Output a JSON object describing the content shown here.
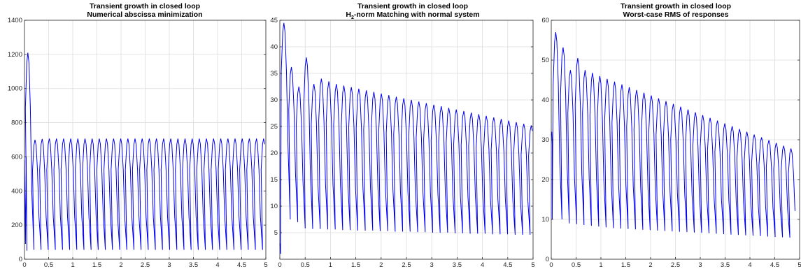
{
  "chart_data": [
    {
      "type": "line",
      "title": "Transient growth in closed loop",
      "subtitle": "Numerical abscissa minimization",
      "xlabel": "",
      "ylabel": "",
      "xlim": [
        0,
        5
      ],
      "ylim": [
        0,
        1400
      ],
      "xticks": [
        0,
        0.5,
        1,
        1.5,
        2,
        2.5,
        3,
        3.5,
        4,
        4.5,
        5
      ],
      "yticks": [
        0,
        200,
        400,
        600,
        800,
        1000,
        1200,
        1400
      ],
      "grid": true,
      "series": [
        {
          "color": "#0000ee",
          "period": 0.148,
          "start_x": 0.05,
          "first_peak_x": 0.07,
          "first_peak_y": 1210,
          "peaks": [
            1210,
            700,
            705,
            707,
            707,
            707,
            707,
            707,
            707,
            707,
            707,
            707,
            707,
            707,
            707,
            707,
            707,
            707,
            707,
            707,
            707,
            707,
            707,
            707,
            707,
            707,
            707,
            707,
            707,
            707,
            707,
            707,
            707,
            707
          ],
          "troughs": [
            50,
            55,
            55,
            55,
            55,
            55,
            55,
            55,
            55,
            55,
            55,
            55,
            55,
            55,
            55,
            55,
            55,
            55,
            55,
            55,
            55,
            55,
            55,
            55,
            55,
            55,
            55,
            55,
            55,
            55,
            55,
            55,
            55,
            55
          ],
          "initial_points": [
            [
              0,
              580
            ],
            [
              0.02,
              90
            ],
            [
              0.035,
              600
            ]
          ]
        }
      ]
    },
    {
      "type": "line",
      "title": "Transient growth in closed loop",
      "subtitle_parts": [
        "H",
        "2",
        "-norm Matching with normal system"
      ],
      "xlabel": "",
      "ylabel": "",
      "xlim": [
        0,
        5
      ],
      "ylim": [
        0,
        45
      ],
      "xticks": [
        0,
        0.5,
        1,
        1.5,
        2,
        2.5,
        3,
        3.5,
        4,
        4.5,
        5
      ],
      "yticks": [
        5,
        10,
        15,
        20,
        25,
        30,
        35,
        40,
        45
      ],
      "grid": true,
      "series": [
        {
          "color": "#0000ee",
          "period": 0.148,
          "start_x": 0.02,
          "first_peak_x": 0.08,
          "first_peak_y": 44.5,
          "peaks": [
            44.5,
            36.2,
            32.5,
            38.0,
            33.0,
            34.0,
            33.5,
            33.0,
            32.7,
            32.4,
            32.1,
            31.8,
            31.5,
            31.2,
            30.9,
            30.6,
            30.3,
            30.0,
            29.7,
            29.4,
            29.1,
            28.8,
            28.5,
            28.2,
            27.9,
            27.6,
            27.3,
            27.0,
            26.7,
            26.4,
            26.1,
            25.8,
            25.5,
            25.2
          ],
          "troughs": [
            11.3,
            7.5,
            7.0,
            5.8,
            5.7,
            5.7,
            5.6,
            5.6,
            5.5,
            5.5,
            5.4,
            5.4,
            5.4,
            5.3,
            5.3,
            5.2,
            5.2,
            5.2,
            5.1,
            5.1,
            5.0,
            5.0,
            5.0,
            4.9,
            4.9,
            4.8,
            4.8,
            4.8,
            4.7,
            4.7,
            4.7,
            4.6,
            4.6,
            4.6
          ],
          "initial_points": [
            [
              0,
              3
            ],
            [
              0.015,
              1
            ],
            [
              0.02,
              20
            ]
          ]
        }
      ]
    },
    {
      "type": "line",
      "title": "Transient growth in closed loop",
      "subtitle": "Worst-case RMS of responses",
      "xlabel": "",
      "ylabel": "",
      "xlim": [
        0,
        5
      ],
      "ylim": [
        0,
        60
      ],
      "xticks": [
        0,
        0.5,
        1,
        1.5,
        2,
        2.5,
        3,
        3.5,
        4,
        4.5,
        5
      ],
      "yticks": [
        0,
        10,
        20,
        30,
        40,
        50,
        60
      ],
      "grid": true,
      "series": [
        {
          "color": "#0000ee",
          "period": 0.148,
          "start_x": 0.02,
          "first_peak_x": 0.09,
          "first_peak_y": 57,
          "peaks": [
            57,
            53.2,
            47.5,
            50.5,
            47.5,
            46.8,
            46.0,
            45.3,
            44.6,
            43.9,
            43.2,
            42.5,
            41.8,
            41.1,
            40.4,
            39.7,
            39.0,
            38.3,
            37.6,
            36.9,
            36.2,
            35.5,
            34.8,
            34.1,
            33.4,
            32.7,
            32.0,
            31.3,
            30.6,
            29.9,
            29.2,
            28.5,
            27.8
          ],
          "troughs": [
            10.0,
            10.0,
            9.0,
            8.8,
            8.6,
            8.4,
            8.2,
            8.0,
            7.8,
            7.7,
            7.6,
            7.5,
            7.4,
            7.3,
            7.2,
            7.1,
            7.0,
            6.9,
            6.8,
            6.7,
            6.6,
            6.5,
            6.4,
            6.3,
            6.2,
            6.1,
            6.0,
            5.9,
            5.8,
            5.7,
            5.6,
            5.5,
            5.4
          ],
          "initial_points": [
            [
              0,
              31
            ],
            [
              0.01,
              32
            ],
            [
              0.02,
              29
            ]
          ]
        }
      ]
    }
  ]
}
